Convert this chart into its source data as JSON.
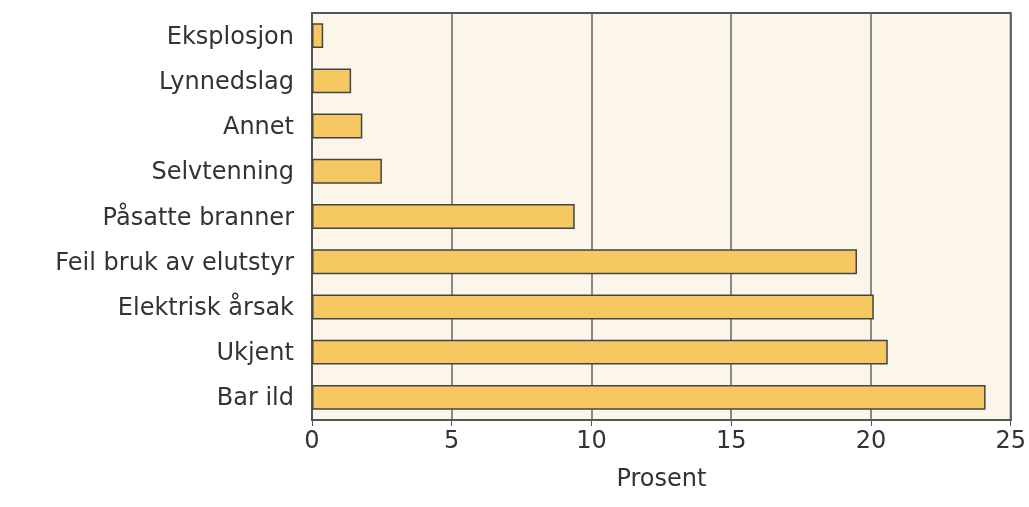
{
  "chart_data": {
    "type": "bar",
    "orientation": "horizontal",
    "xlabel": "Prosent",
    "categories": [
      "Eksplosjon",
      "Lynnedslag",
      "Annet",
      "Selvtenning",
      "Påsatte branner",
      "Feil bruk av elutstyr",
      "Elektrisk årsak",
      "Ukjent",
      "Bar ild"
    ],
    "values": [
      0.4,
      1.4,
      1.8,
      2.5,
      9.4,
      19.5,
      20.1,
      20.6,
      24.1
    ],
    "color": "#f5c862",
    "xlim": [
      0,
      25
    ],
    "xticks": [
      0,
      5,
      10,
      15,
      20,
      25
    ],
    "grid": "x"
  }
}
